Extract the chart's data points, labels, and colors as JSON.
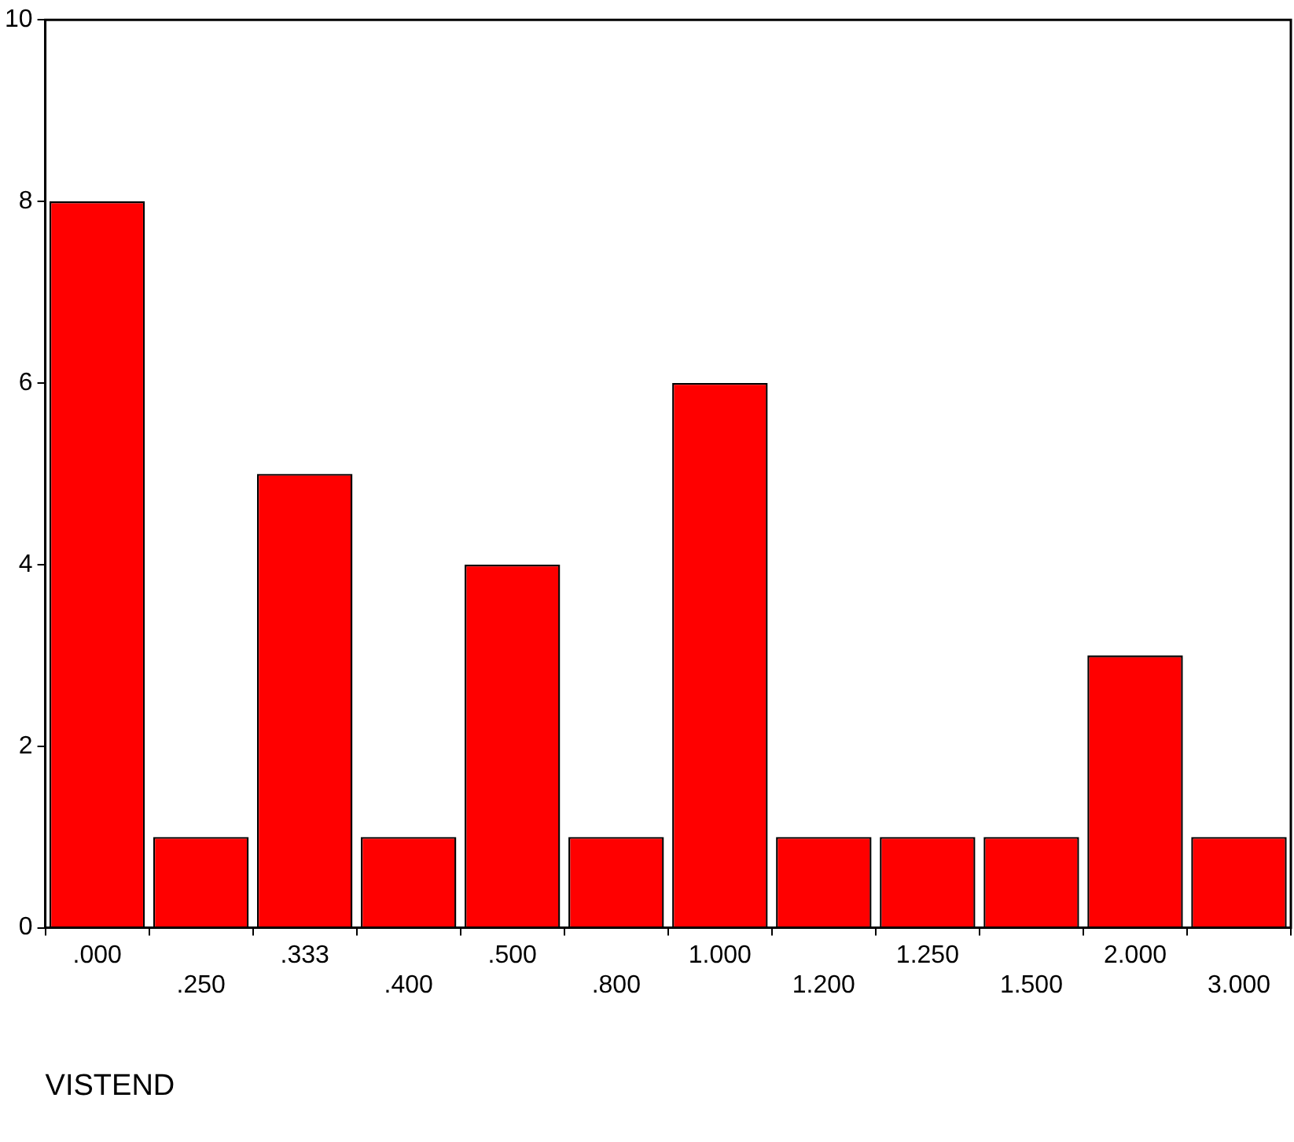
{
  "chart_data": {
    "type": "bar",
    "xlabel": "VISTEND",
    "categories": [
      ".000",
      ".250",
      ".333",
      ".400",
      ".500",
      ".800",
      "1.000",
      "1.200",
      "1.250",
      "1.500",
      "2.000",
      "3.000"
    ],
    "values": [
      8,
      1,
      5,
      1,
      4,
      1,
      6,
      1,
      1,
      1,
      3,
      1
    ],
    "color": "#ff0000",
    "ylim": [
      0,
      10
    ],
    "yticks": [
      0,
      2,
      4,
      6,
      8,
      10
    ],
    "grid": false,
    "legend": false
  }
}
